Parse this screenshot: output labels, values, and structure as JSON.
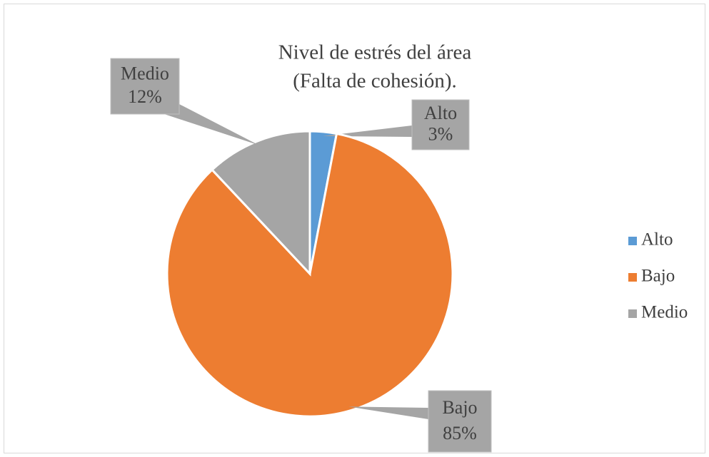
{
  "chart_data": {
    "type": "pie",
    "title": [
      "Nivel de estrés del área",
      "(Falta de cohesión)."
    ],
    "categories": [
      "Alto",
      "Bajo",
      "Medio"
    ],
    "values": [
      3,
      85,
      12
    ],
    "value_labels": [
      "3%",
      "85%",
      "12%"
    ],
    "colors": [
      "#5b9bd5",
      "#ed7d31",
      "#a5a5a5"
    ],
    "legend": "right"
  }
}
